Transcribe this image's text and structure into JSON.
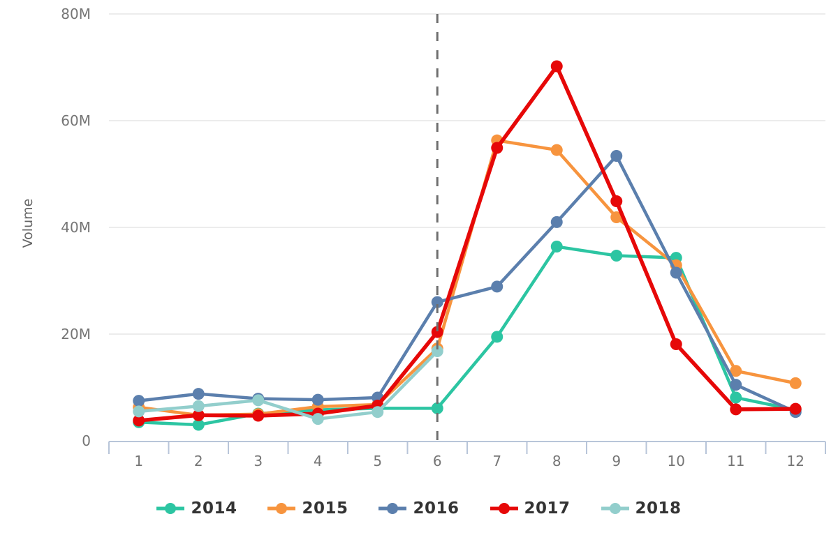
{
  "chart_data": {
    "type": "line",
    "title": "",
    "xlabel": "",
    "ylabel": "Volume",
    "unit": "millions",
    "x": [
      1,
      2,
      3,
      4,
      5,
      6,
      7,
      8,
      9,
      10,
      11,
      12
    ],
    "xtick_labels": [
      "1",
      "2",
      "3",
      "4",
      "5",
      "6",
      "7",
      "8",
      "9",
      "10",
      "11",
      "12"
    ],
    "ytick_values": [
      0,
      20,
      40,
      60,
      80
    ],
    "ytick_labels": [
      "0",
      "20M",
      "40M",
      "60M",
      "80M"
    ],
    "ylim": [
      0,
      80
    ],
    "grid": "horizontal",
    "legend_position": "bottom",
    "annotations": [
      {
        "type": "vline",
        "x": 6,
        "style": "dashed",
        "color": "#6e6e6e"
      }
    ],
    "series": [
      {
        "name": "2014",
        "color": "#2cc5a2",
        "values": [
          3.5,
          3.0,
          5.1,
          5.8,
          6.1,
          6.1,
          19.5,
          36.4,
          34.7,
          34.3,
          8.1,
          5.8
        ]
      },
      {
        "name": "2015",
        "color": "#f7943e",
        "values": [
          6.3,
          4.8,
          5.0,
          6.4,
          6.8,
          17.3,
          56.3,
          54.5,
          41.9,
          32.9,
          13.1,
          10.8
        ]
      },
      {
        "name": "2016",
        "color": "#5b7fad",
        "values": [
          7.5,
          8.8,
          7.9,
          7.7,
          8.1,
          26.0,
          28.9,
          41.0,
          53.4,
          31.5,
          10.5,
          5.4
        ]
      },
      {
        "name": "2017",
        "color": "#e60808",
        "values": [
          3.8,
          4.8,
          4.7,
          5.1,
          6.6,
          20.4,
          54.9,
          70.2,
          44.9,
          18.1,
          5.9,
          6.0
        ]
      },
      {
        "name": "2018",
        "color": "#92cecc",
        "values": [
          5.5,
          6.5,
          7.6,
          4.1,
          5.4,
          16.8,
          null,
          null,
          null,
          null,
          null,
          null
        ]
      }
    ]
  },
  "colors": {
    "background": "#ffffff",
    "grid": "#e6e6e6",
    "axis_line": "#b8c5d9",
    "tick_text": "#757575",
    "axis_title_text": "#666666",
    "legend_text": "#333333",
    "vline": "#6e6e6e"
  }
}
